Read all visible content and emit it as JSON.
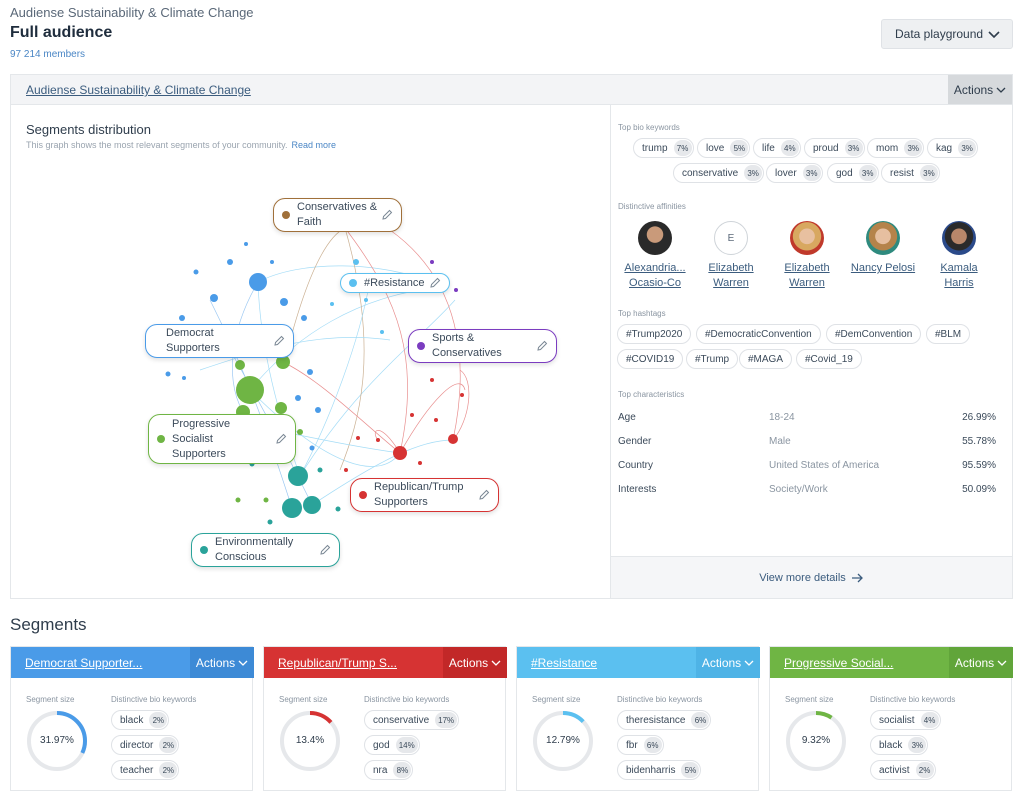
{
  "header": {
    "subtitle": "Audiense Sustainability & Climate Change",
    "title": "Full audience",
    "members": "97 214 members",
    "playground_button": "Data playground"
  },
  "panel": {
    "link": "Audiense Sustainability & Climate Change",
    "actions": "Actions",
    "segments_title": "Segments distribution",
    "segments_desc": "This graph shows the most relevant segments of your community.",
    "read_more": "Read more"
  },
  "network_labels": [
    {
      "line1": "Conservatives &",
      "line2": "Faith",
      "color": "#a0703a"
    },
    {
      "line1": "#Resistance",
      "line2": "",
      "color": "#5bc0f0"
    },
    {
      "line1": "Democrat",
      "line2": "Supporters",
      "color": "#4a9be8"
    },
    {
      "line1": "Sports &",
      "line2": "Conservatives",
      "color": "#7b3cc0"
    },
    {
      "line1": "Progressive",
      "line2": "Socialist",
      "line3": "Supporters",
      "color": "#6fb544"
    },
    {
      "line1": "Republican/Trump",
      "line2": "Supporters",
      "color": "#d63333"
    },
    {
      "line1": "Environmentally",
      "line2": "Conscious",
      "color": "#2aa39a"
    }
  ],
  "bio_keywords": {
    "label": "Top bio keywords",
    "items": [
      {
        "word": "trump",
        "pct": "7%"
      },
      {
        "word": "love",
        "pct": "5%"
      },
      {
        "word": "life",
        "pct": "4%"
      },
      {
        "word": "proud",
        "pct": "3%"
      },
      {
        "word": "mom",
        "pct": "3%"
      },
      {
        "word": "kag",
        "pct": "3%"
      },
      {
        "word": "conservative",
        "pct": "3%"
      },
      {
        "word": "lover",
        "pct": "3%"
      },
      {
        "word": "god",
        "pct": "3%"
      },
      {
        "word": "resist",
        "pct": "3%"
      }
    ]
  },
  "affinities": {
    "label": "Distinctive affinities",
    "items": [
      {
        "line1": "Alexandria...",
        "line2": "Ocasio-Co",
        "avatar": "photo"
      },
      {
        "line1": "Elizabeth",
        "line2": "Warren",
        "avatar": "E"
      },
      {
        "line1": "Elizabeth",
        "line2": "Warren",
        "avatar": "photo"
      },
      {
        "line1": "Nancy Pelosi",
        "line2": "",
        "avatar": "photo"
      },
      {
        "line1": "Kamala",
        "line2": "Harris",
        "avatar": "photo"
      }
    ]
  },
  "hashtags": {
    "label": "Top hashtags",
    "row1": [
      "#Trump2020",
      "#DemocraticConvention",
      "#DemConvention",
      "#BLM"
    ],
    "row2": [
      "#COVID19",
      "#Trump",
      "#MAGA",
      "#Covid_19"
    ]
  },
  "characteristics": {
    "label": "Top characteristics",
    "rows": [
      {
        "key": "Age",
        "value": "18-24",
        "pct": "26.99%"
      },
      {
        "key": "Gender",
        "value": "Male",
        "pct": "55.78%"
      },
      {
        "key": "Country",
        "value": "United States of America",
        "pct": "95.59%"
      },
      {
        "key": "Interests",
        "value": "Society/Work",
        "pct": "50.09%"
      }
    ]
  },
  "view_more": "View more details",
  "segments_heading": "Segments",
  "segment_cards": [
    {
      "name": "Democrat Supporter...",
      "actions": "Actions",
      "color": "#4a9be8",
      "actcolor": "#3d8ad6",
      "size_label": "Segment size",
      "kw_label": "Distinctive bio keywords",
      "size": "31.97%",
      "fraction": 0.3197,
      "keywords": [
        {
          "word": "black",
          "pct": "2%"
        },
        {
          "word": "director",
          "pct": "2%"
        },
        {
          "word": "teacher",
          "pct": "2%"
        }
      ]
    },
    {
      "name": "Republican/Trump S...",
      "actions": "Actions",
      "color": "#d63333",
      "actcolor": "#c22828",
      "size_label": "Segment size",
      "kw_label": "Distinctive bio keywords",
      "size": "13.4%",
      "fraction": 0.134,
      "keywords": [
        {
          "word": "conservative",
          "pct": "17%"
        },
        {
          "word": "god",
          "pct": "14%"
        },
        {
          "word": "nra",
          "pct": "8%"
        }
      ]
    },
    {
      "name": "#Resistance",
      "actions": "Actions",
      "color": "#5bc0f0",
      "actcolor": "#4eb3e6",
      "size_label": "Segment size",
      "kw_label": "Distinctive bio keywords",
      "size": "12.79%",
      "fraction": 0.1279,
      "keywords": [
        {
          "word": "theresistance",
          "pct": "6%"
        },
        {
          "word": "fbr",
          "pct": "6%"
        },
        {
          "word": "bidenharris",
          "pct": "5%"
        }
      ]
    },
    {
      "name": "Progressive Social...",
      "actions": "Actions",
      "color": "#6fb544",
      "actcolor": "#61a53a",
      "size_label": "Segment size",
      "kw_label": "Distinctive bio keywords",
      "size": "9.32%",
      "fraction": 0.0932,
      "keywords": [
        {
          "word": "socialist",
          "pct": "4%"
        },
        {
          "word": "black",
          "pct": "3%"
        },
        {
          "word": "activist",
          "pct": "2%"
        }
      ]
    }
  ]
}
